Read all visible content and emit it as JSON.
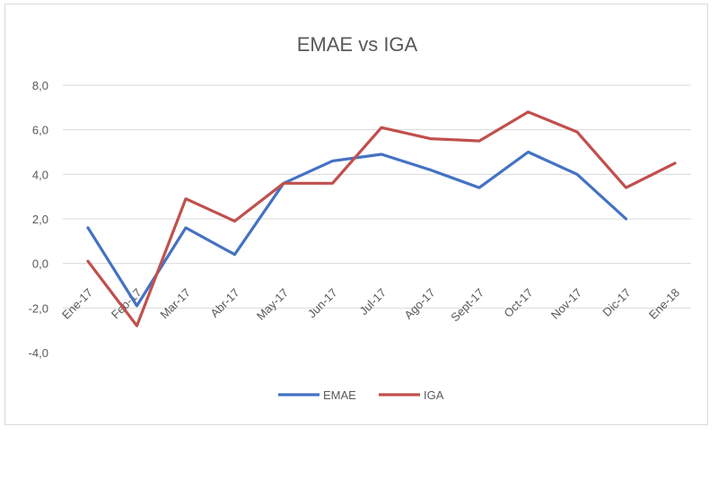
{
  "chart_data": {
    "type": "line",
    "title": "EMAE vs IGA",
    "xlabel": "",
    "ylabel": "",
    "categories": [
      "Ene-17",
      "Feb-17",
      "Mar-17",
      "Abr-17",
      "May-17",
      "Jun-17",
      "Jul-17",
      "Ago-17",
      "Sept-17",
      "Oct-17",
      "Nov-17",
      "Dic-17",
      "Ene-18"
    ],
    "ylim": [
      -4,
      8
    ],
    "yticks": [
      "-4,0",
      "-2,0",
      "0,0",
      "2,0",
      "4,0",
      "6,0",
      "8,0"
    ],
    "grid": true,
    "legend_position": "bottom",
    "series": [
      {
        "name": "EMAE",
        "color": "#4472c4",
        "values": [
          1.6,
          -1.9,
          1.6,
          0.4,
          3.6,
          4.6,
          4.9,
          4.2,
          3.4,
          5.0,
          4.0,
          2.0,
          null
        ]
      },
      {
        "name": "IGA",
        "color": "#c0504d",
        "values": [
          0.1,
          -2.8,
          2.9,
          1.9,
          3.6,
          3.6,
          6.1,
          5.6,
          5.5,
          6.8,
          5.9,
          3.4,
          4.5
        ]
      }
    ]
  }
}
